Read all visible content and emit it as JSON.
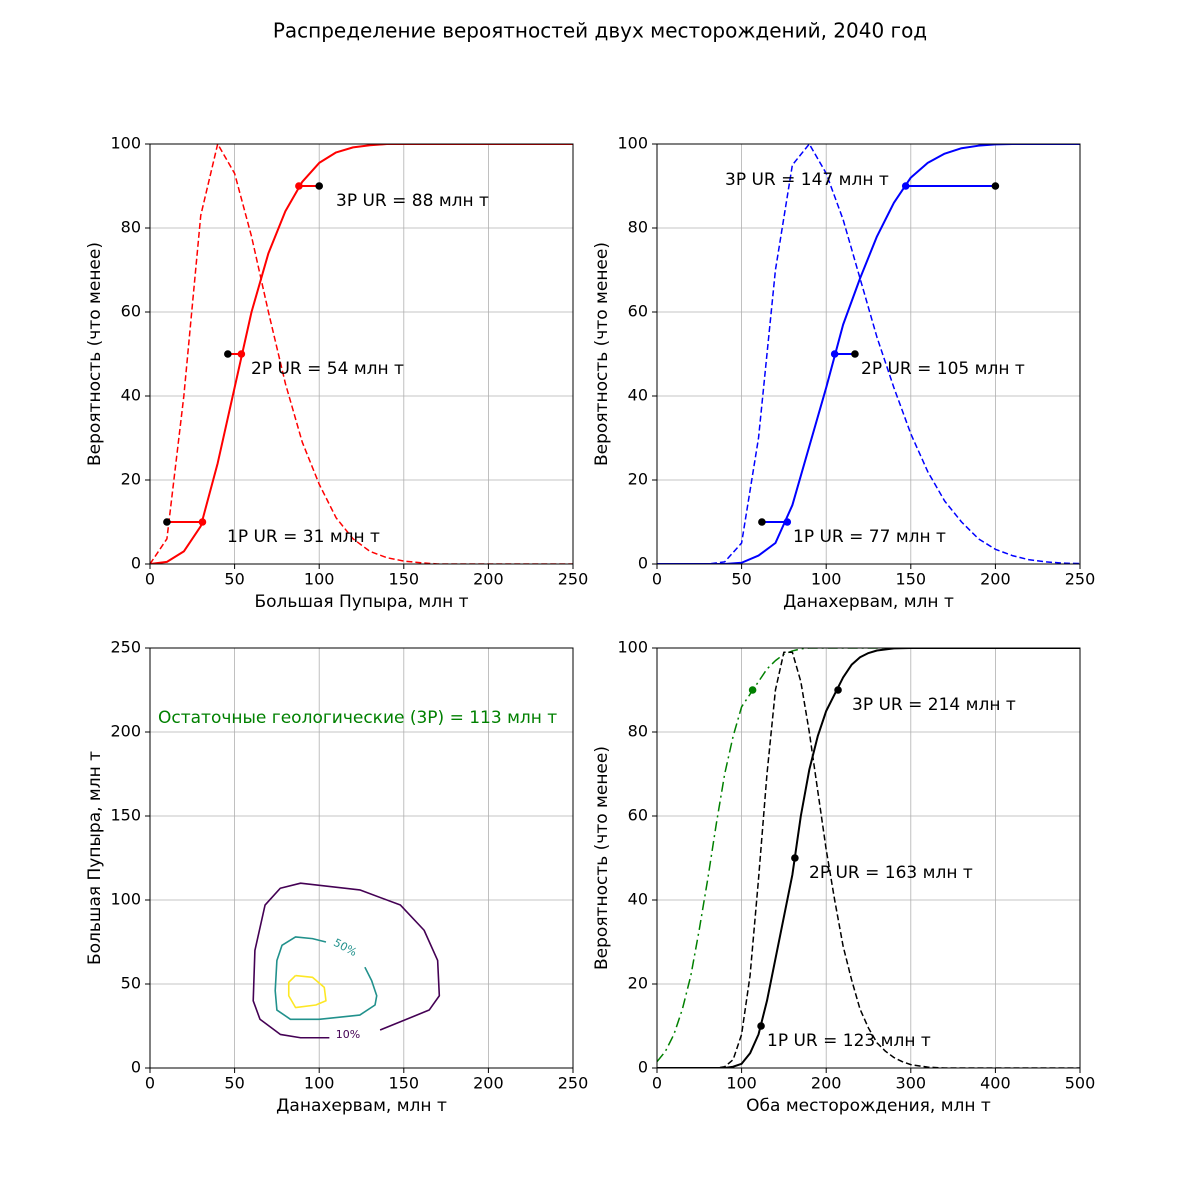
{
  "title": "Распределение вероятностей двух месторождений, 2040 год",
  "chart_data": [
    {
      "type": "line",
      "xlabel": "Большая Пупыра, млн т",
      "ylabel": "Вероятность (что менее)",
      "xlim": [
        0,
        250
      ],
      "ylim": [
        0,
        100
      ],
      "xticks": [
        0,
        50,
        100,
        150,
        200,
        250
      ],
      "yticks": [
        0,
        20,
        40,
        60,
        80,
        100
      ],
      "grid": true,
      "series": [
        {
          "color": "red",
          "style": "dashed",
          "x": [
            0,
            10,
            20,
            30,
            40,
            50,
            60,
            70,
            80,
            90,
            100,
            110,
            120,
            130,
            140,
            150,
            160,
            170,
            180,
            190,
            200,
            210,
            220,
            230,
            240,
            250
          ],
          "values": [
            0,
            6,
            40,
            83,
            100,
            93,
            78,
            60,
            43,
            29,
            19,
            11,
            6,
            3,
            1.5,
            0.7,
            0.3,
            0,
            0,
            0,
            0,
            0,
            0,
            0,
            0,
            0
          ]
        },
        {
          "color": "red",
          "style": "solid",
          "x": [
            0,
            10,
            20,
            30,
            40,
            50,
            60,
            70,
            80,
            90,
            100,
            110,
            120,
            130,
            140,
            150,
            160,
            170,
            180,
            190,
            200,
            210,
            220,
            230,
            240,
            250
          ],
          "values": [
            0,
            0.5,
            3,
            9,
            24,
            42,
            60,
            74,
            84,
            91,
            95.5,
            98,
            99.2,
            99.7,
            100,
            100,
            100,
            100,
            100,
            100,
            100,
            100,
            100,
            100,
            100,
            100
          ]
        },
        {
          "color": "red",
          "style": "solid",
          "x": [
            10,
            31
          ],
          "values": [
            10,
            10
          ]
        },
        {
          "color": "red",
          "style": "solid",
          "x": [
            46,
            54
          ],
          "values": [
            50,
            50
          ]
        },
        {
          "color": "red",
          "style": "solid",
          "x": [
            88,
            100
          ],
          "values": [
            90,
            90
          ]
        },
        {
          "color": "black",
          "style": "markers",
          "x": [
            10,
            46,
            100
          ],
          "values": [
            10,
            50,
            90
          ]
        },
        {
          "color": "red",
          "style": "markers",
          "x": [
            31,
            54,
            88
          ],
          "values": [
            10,
            50,
            90
          ]
        }
      ],
      "annotations": [
        "3P UR = 88 млн т",
        "2P UR = 54 млн т",
        "1P UR = 31 млн т"
      ]
    },
    {
      "type": "line",
      "xlabel": "Данахервам, млн т",
      "ylabel": "Вероятность (что менее)",
      "xlim": [
        0,
        250
      ],
      "ylim": [
        0,
        100
      ],
      "xticks": [
        0,
        50,
        100,
        150,
        200,
        250
      ],
      "yticks": [
        0,
        20,
        40,
        60,
        80,
        100
      ],
      "grid": true,
      "series": [
        {
          "color": "blue",
          "style": "dashed",
          "x": [
            0,
            10,
            20,
            30,
            40,
            50,
            60,
            70,
            80,
            90,
            100,
            110,
            120,
            130,
            140,
            150,
            160,
            170,
            180,
            190,
            200,
            210,
            220,
            230,
            240,
            250
          ],
          "values": [
            0,
            0,
            0,
            0,
            0.5,
            5,
            30,
            70,
            95,
            100,
            93,
            82,
            68,
            54,
            42,
            31,
            22,
            15,
            10,
            6,
            3.5,
            2,
            1,
            0.5,
            0.2,
            0.1
          ]
        },
        {
          "color": "blue",
          "style": "solid",
          "x": [
            0,
            10,
            20,
            30,
            40,
            50,
            60,
            70,
            80,
            90,
            100,
            110,
            120,
            130,
            140,
            150,
            160,
            170,
            180,
            190,
            200,
            210,
            220,
            230,
            240,
            250
          ],
          "values": [
            0,
            0,
            0,
            0,
            0,
            0.3,
            2,
            5,
            14,
            28,
            42,
            57,
            68,
            78,
            86,
            92,
            95.5,
            97.7,
            99,
            99.6,
            99.9,
            100,
            100,
            100,
            100,
            100
          ]
        },
        {
          "color": "blue",
          "style": "solid",
          "x": [
            62,
            77
          ],
          "values": [
            10,
            10
          ]
        },
        {
          "color": "blue",
          "style": "solid",
          "x": [
            105,
            117
          ],
          "values": [
            50,
            50
          ]
        },
        {
          "color": "blue",
          "style": "solid",
          "x": [
            147,
            200
          ],
          "values": [
            90,
            90
          ]
        },
        {
          "color": "black",
          "style": "markers",
          "x": [
            62,
            117,
            200
          ],
          "values": [
            10,
            50,
            90
          ]
        },
        {
          "color": "blue",
          "style": "markers",
          "x": [
            77,
            105,
            147
          ],
          "values": [
            10,
            50,
            90
          ]
        }
      ],
      "annotations": [
        "3P UR = 147 млн т",
        "2P UR = 105 млн т",
        "1P UR = 77 млн т"
      ]
    },
    {
      "type": "contour",
      "xlabel": "Данахервам, млн т",
      "ylabel": "Большая Пупыра, млн т",
      "xlim": [
        0,
        250
      ],
      "ylim": [
        0,
        250
      ],
      "xticks": [
        0,
        50,
        100,
        150,
        200,
        250
      ],
      "yticks": [
        0,
        50,
        100,
        150,
        200,
        250
      ],
      "grid": true,
      "series": [
        {
          "color": "#440154",
          "label": "10%",
          "x": [
            136,
            165,
            171,
            170,
            162,
            148,
            124,
            89,
            77,
            68,
            62,
            61,
            65,
            77,
            89,
            106
          ],
          "values": [
            22.6,
            34.5,
            43,
            64,
            82,
            97,
            106,
            110,
            107,
            97,
            70,
            40,
            29,
            20,
            18,
            18
          ]
        },
        {
          "color": "#21918c",
          "label": "50%",
          "x": [
            127,
            131,
            134,
            133,
            124,
            100,
            83,
            75,
            74,
            75,
            78,
            86,
            96,
            104
          ],
          "values": [
            60,
            52,
            43,
            37.5,
            31.5,
            29,
            29,
            34.5,
            46,
            64,
            73,
            78,
            77,
            75
          ]
        },
        {
          "color": "#fde725",
          "x": [
            86,
            96,
            103,
            104,
            98,
            86,
            82,
            82,
            86
          ],
          "values": [
            55,
            54,
            48,
            40,
            37.5,
            36,
            43,
            51,
            55
          ]
        }
      ],
      "annotations": [
        "Остаточные геологические (3P) = 113 млн т"
      ],
      "annotation_color": "green"
    },
    {
      "type": "line",
      "xlabel": "Оба месторождения, млн т",
      "ylabel": "Вероятность (что менее)",
      "xlim": [
        0,
        500
      ],
      "ylim": [
        0,
        100
      ],
      "xticks": [
        0,
        100,
        200,
        300,
        400,
        500
      ],
      "yticks": [
        0,
        20,
        40,
        60,
        80,
        100
      ],
      "grid": true,
      "series": [
        {
          "color": "green",
          "style": "dashdot",
          "x": [
            0,
            10,
            20,
            30,
            40,
            50,
            60,
            70,
            80,
            90,
            100,
            110,
            120,
            130,
            140,
            150,
            160,
            170,
            180,
            200,
            250,
            300,
            400,
            500
          ],
          "values": [
            1.5,
            4,
            8,
            14,
            22,
            33,
            45,
            58,
            70,
            79,
            86,
            89,
            92,
            95,
            97,
            98.5,
            99.3,
            99.8,
            100,
            100,
            100,
            100,
            100,
            100
          ]
        },
        {
          "color": "black",
          "style": "dashed",
          "x": [
            0,
            70,
            80,
            90,
            100,
            110,
            120,
            130,
            140,
            150,
            160,
            170,
            180,
            190,
            200,
            210,
            220,
            230,
            240,
            250,
            260,
            270,
            280,
            290,
            300,
            320,
            340,
            500
          ],
          "values": [
            0,
            0,
            0.3,
            2,
            8,
            22,
            45,
            70,
            90,
            99,
            99,
            92,
            80,
            66,
            52,
            40,
            29,
            21,
            14,
            9.5,
            6,
            4,
            2.5,
            1.5,
            0.8,
            0.2,
            0,
            0
          ]
        },
        {
          "color": "black",
          "style": "solid",
          "x": [
            0,
            80,
            90,
            100,
            110,
            120,
            130,
            140,
            150,
            160,
            170,
            180,
            190,
            200,
            210,
            220,
            230,
            240,
            250,
            260,
            280,
            300,
            500
          ],
          "values": [
            0,
            0,
            0.3,
            1,
            3.5,
            8,
            16,
            26,
            36,
            46,
            60,
            71,
            79,
            85,
            89,
            93,
            96,
            97.8,
            98.8,
            99.4,
            99.9,
            100,
            100
          ]
        },
        {
          "color": "green",
          "style": "markers",
          "x": [
            113
          ],
          "values": [
            90
          ]
        },
        {
          "color": "black",
          "style": "markers",
          "x": [
            123,
            163,
            214
          ],
          "values": [
            10,
            50,
            90
          ]
        }
      ],
      "annotations": [
        "3P UR = 214 млн т",
        "2P UR = 163 млн т",
        "1P UR = 123 млн т"
      ]
    }
  ]
}
